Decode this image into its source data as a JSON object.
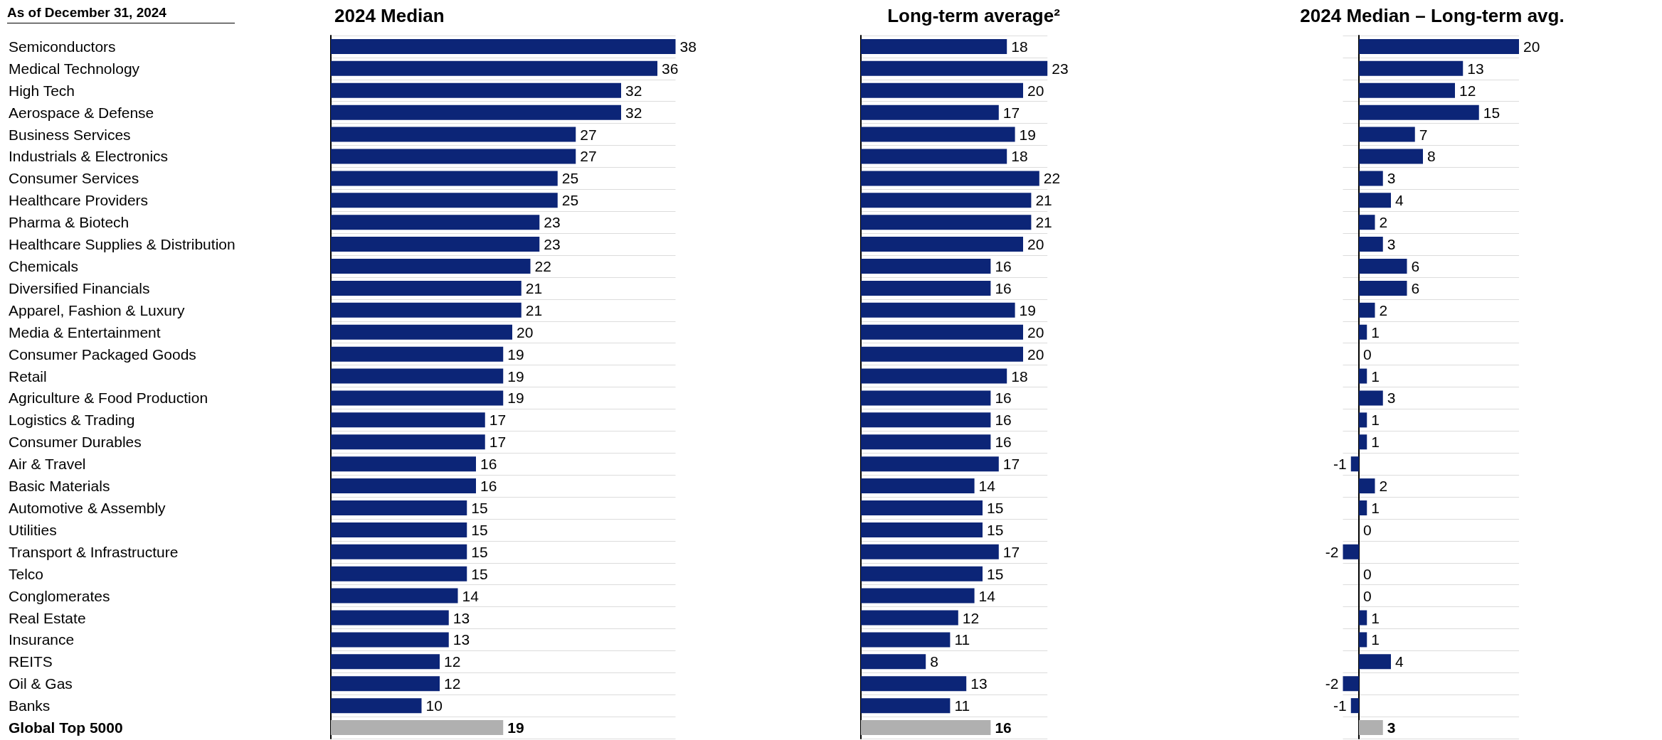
{
  "chart_data": [
    {
      "type": "bar",
      "orientation": "horizontal",
      "title": "2024 Median",
      "annotations": [
        "As of December 31, 2024"
      ],
      "tick_labels": "y",
      "grid": "y",
      "data_labels": true,
      "categories": [
        "Semiconductors",
        "Medical Technology",
        "High Tech",
        "Aerospace & Defense",
        "Business Services",
        "Industrials & Electronics",
        "Consumer Services",
        "Healthcare Providers",
        "Pharma & Biotech",
        "Healthcare Supplies & Distribution",
        "Chemicals",
        "Diversified Financials",
        "Apparel, Fashion & Luxury",
        "Media & Entertainment",
        "Consumer Packaged Goods",
        "Retail",
        "Agriculture & Food Production",
        "Logistics & Trading",
        "Consumer Durables",
        "Air & Travel",
        "Basic Materials",
        "Automotive & Assembly",
        "Utilities",
        "Transport & Infrastructure",
        "Telco",
        "Conglomerates",
        "Real Estate",
        "Insurance",
        "REITS",
        "Oil & Gas",
        "Banks",
        "Global Top 5000"
      ],
      "values": [
        38,
        36,
        32,
        32,
        27,
        27,
        25,
        25,
        23,
        23,
        22,
        21,
        21,
        20,
        19,
        19,
        19,
        17,
        17,
        16,
        16,
        15,
        15,
        15,
        15,
        14,
        13,
        13,
        12,
        12,
        10,
        19
      ],
      "colors": [
        "#0c2577",
        "#0c2577",
        "#0c2577",
        "#0c2577",
        "#0c2577",
        "#0c2577",
        "#0c2577",
        "#0c2577",
        "#0c2577",
        "#0c2577",
        "#0c2577",
        "#0c2577",
        "#0c2577",
        "#0c2577",
        "#0c2577",
        "#0c2577",
        "#0c2577",
        "#0c2577",
        "#0c2577",
        "#0c2577",
        "#0c2577",
        "#0c2577",
        "#0c2577",
        "#0c2577",
        "#0c2577",
        "#0c2577",
        "#0c2577",
        "#0c2577",
        "#0c2577",
        "#0c2577",
        "#0c2577",
        "#b0b0b0"
      ]
    },
    {
      "type": "bar",
      "orientation": "horizontal",
      "title": "Long-term average²",
      "tick_labels": false,
      "grid": "y",
      "data_labels": true,
      "categories": [
        null,
        null,
        null,
        null,
        null,
        null,
        null,
        null,
        null,
        null,
        null,
        null,
        null,
        null,
        null,
        null,
        null,
        null,
        null,
        null,
        null,
        null,
        null,
        null,
        null,
        null,
        null,
        null,
        null,
        null,
        null,
        null
      ],
      "values": [
        18,
        23,
        20,
        17,
        19,
        18,
        22,
        21,
        21,
        20,
        16,
        16,
        19,
        20,
        20,
        18,
        16,
        16,
        16,
        17,
        14,
        15,
        15,
        17,
        15,
        14,
        12,
        11,
        8,
        13,
        11,
        16
      ],
      "colors": [
        "#0c2577",
        "#0c2577",
        "#0c2577",
        "#0c2577",
        "#0c2577",
        "#0c2577",
        "#0c2577",
        "#0c2577",
        "#0c2577",
        "#0c2577",
        "#0c2577",
        "#0c2577",
        "#0c2577",
        "#0c2577",
        "#0c2577",
        "#0c2577",
        "#0c2577",
        "#0c2577",
        "#0c2577",
        "#0c2577",
        "#0c2577",
        "#0c2577",
        "#0c2577",
        "#0c2577",
        "#0c2577",
        "#0c2577",
        "#0c2577",
        "#0c2577",
        "#0c2577",
        "#0c2577",
        "#0c2577",
        "#b0b0b0"
      ]
    },
    {
      "type": "bar",
      "orientation": "horizontal",
      "title": "2024 Median – Long-term avg.",
      "tick_labels": false,
      "grid": "y",
      "data_labels": true,
      "categories": [
        null,
        null,
        null,
        null,
        null,
        null,
        null,
        null,
        null,
        null,
        null,
        null,
        null,
        null,
        null,
        null,
        null,
        null,
        null,
        null,
        null,
        null,
        null,
        null,
        null,
        null,
        null,
        null,
        null,
        null,
        null,
        null
      ],
      "values": [
        20,
        13,
        12,
        15,
        7,
        8,
        3,
        4,
        2,
        3,
        6,
        6,
        2,
        1,
        0,
        1,
        3,
        1,
        1,
        -1,
        2,
        1,
        0,
        -2,
        0,
        0,
        1,
        1,
        4,
        -2,
        -1,
        3
      ],
      "colors": [
        "#0c2577",
        "#0c2577",
        "#0c2577",
        "#0c2577",
        "#0c2577",
        "#0c2577",
        "#0c2577",
        "#0c2577",
        "#0c2577",
        "#0c2577",
        "#0c2577",
        "#0c2577",
        "#0c2577",
        "#0c2577",
        "#0c2577",
        "#0c2577",
        "#0c2577",
        "#0c2577",
        "#0c2577",
        "#0c2577",
        "#0c2577",
        "#0c2577",
        "#0c2577",
        "#0c2577",
        "#0c2577",
        "#0c2577",
        "#0c2577",
        "#0c2577",
        "#0c2577",
        "#0c2577",
        "#0c2577",
        "#b0b0b0"
      ]
    }
  ]
}
